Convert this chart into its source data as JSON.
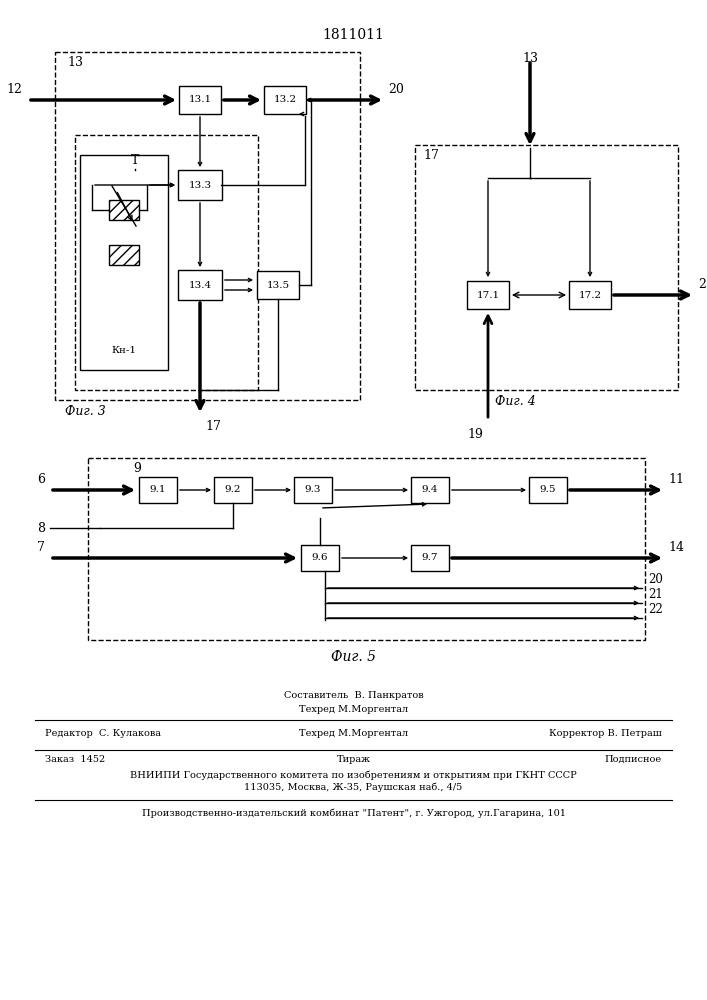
{
  "title": "1811011",
  "fig3_label": "Фиг. 3",
  "fig4_label": "Фиг. 4",
  "fig5_label": "Фиг. 5",
  "footer": {
    "sestavitel": "Составитель  В. Панкратов",
    "tehred": "Техред М.Моргентал",
    "redaktor": "Редактор  С. Кулакова",
    "korrektor": "Корректор В. Петраш",
    "zakaz": "Заказ  1452",
    "tirazh": "Тираж",
    "podpisnoe": "Подписное",
    "vniiipi": "ВНИИПИ Государственного комитета по изобретениям и открытиям при ГКНТ СССР",
    "address": "113035, Москва, Ж-35, Раушская наб., 4/5",
    "patent": "Производственно-издательский комбинат \"Патент\", г. Ужгород, ул.Гагарина, 101"
  }
}
